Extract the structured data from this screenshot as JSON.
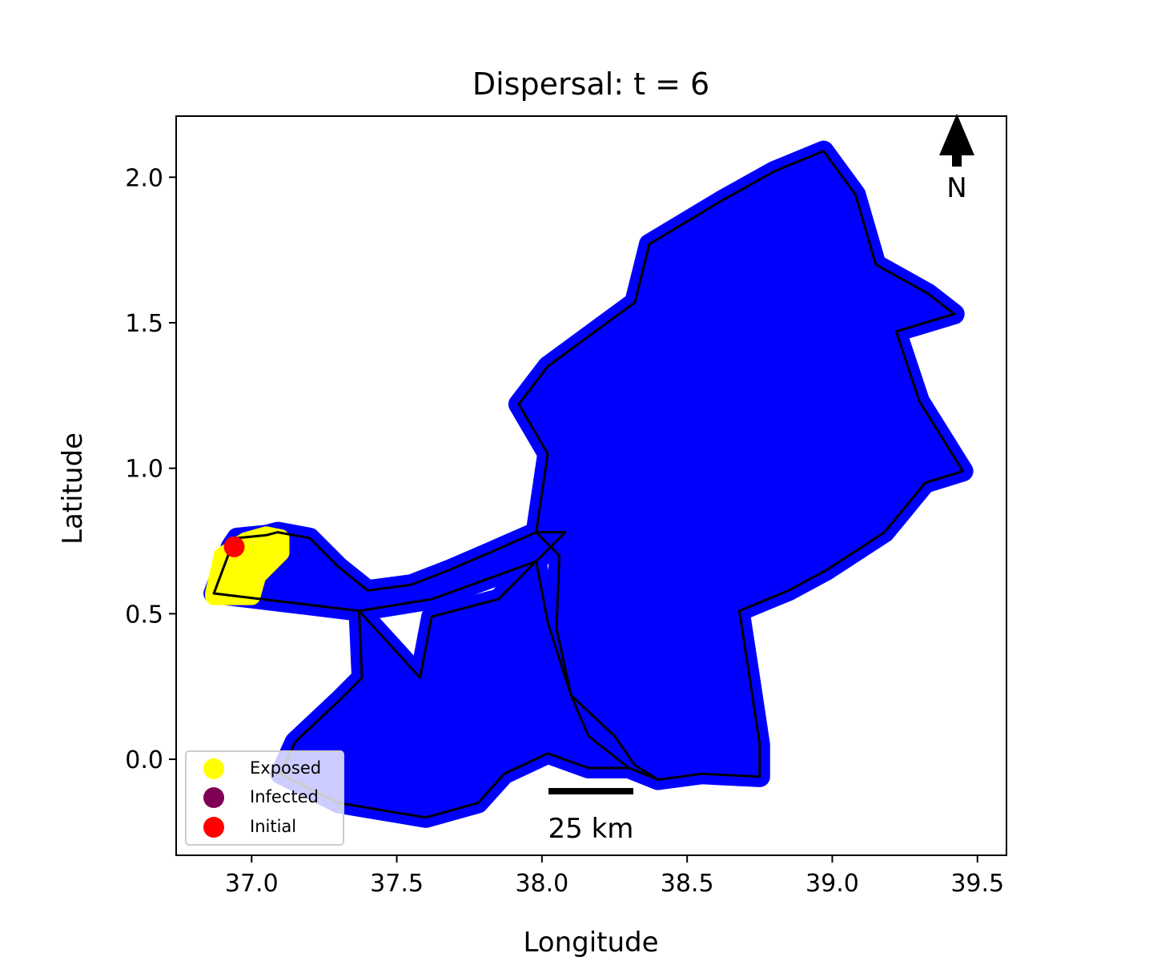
{
  "chart_data": {
    "type": "scatter",
    "title": "Dispersal: t = 6",
    "xlabel": "Longitude",
    "ylabel": "Latitude",
    "xlim": [
      36.74,
      39.6
    ],
    "ylim": [
      -0.33,
      2.21
    ],
    "xticks": [
      37.0,
      37.5,
      38.0,
      38.5,
      39.0,
      39.5
    ],
    "xtick_labels": [
      "37.0",
      "37.5",
      "38.0",
      "38.5",
      "39.0",
      "39.5"
    ],
    "yticks": [
      0.0,
      0.5,
      1.0,
      1.5,
      2.0
    ],
    "ytick_labels": [
      "0.0",
      "0.5",
      "1.0",
      "1.5",
      "2.0"
    ],
    "grid": false,
    "legend": {
      "position": "lower-left",
      "entries": [
        {
          "label": "Exposed",
          "color": "#ffff00"
        },
        {
          "label": "Infected",
          "color": "#800055"
        },
        {
          "label": "Initial",
          "color": "#ff0000"
        }
      ]
    },
    "susceptible_color": "#0000ff",
    "region_outline_color": "#000000",
    "north_arrow": {
      "label": "N",
      "lon": 39.42,
      "lat": 2.12
    },
    "scale_bar": {
      "label": "25 km",
      "lon_start": 38.02,
      "lon_end": 38.31,
      "lat": -0.11
    },
    "exposed_region": [
      [
        36.87,
        0.57
      ],
      [
        36.9,
        0.7
      ],
      [
        36.98,
        0.75
      ],
      [
        37.05,
        0.77
      ],
      [
        37.1,
        0.76
      ],
      [
        37.1,
        0.71
      ],
      [
        37.02,
        0.63
      ],
      [
        37.0,
        0.56
      ],
      [
        36.87,
        0.56
      ]
    ],
    "initial": [
      {
        "lon": 36.94,
        "lat": 0.73
      }
    ],
    "infected": [],
    "regions": [
      {
        "name": "west",
        "outline": [
          [
            36.87,
            0.57
          ],
          [
            36.93,
            0.73
          ],
          [
            36.95,
            0.76
          ],
          [
            37.05,
            0.77
          ],
          [
            37.09,
            0.78
          ],
          [
            37.2,
            0.76
          ],
          [
            37.3,
            0.66
          ],
          [
            37.4,
            0.58
          ],
          [
            37.55,
            0.6
          ],
          [
            37.68,
            0.65
          ],
          [
            37.82,
            0.71
          ],
          [
            37.98,
            0.78
          ],
          [
            38.08,
            0.78
          ],
          [
            37.98,
            0.68
          ],
          [
            37.62,
            0.55
          ],
          [
            37.37,
            0.51
          ],
          [
            36.87,
            0.57
          ]
        ]
      },
      {
        "name": "south",
        "outline": [
          [
            37.37,
            0.51
          ],
          [
            37.38,
            0.28
          ],
          [
            37.3,
            0.2
          ],
          [
            37.15,
            0.06
          ],
          [
            37.1,
            -0.05
          ],
          [
            37.3,
            -0.15
          ],
          [
            37.6,
            -0.2
          ],
          [
            37.78,
            -0.15
          ],
          [
            37.87,
            -0.05
          ],
          [
            38.02,
            0.02
          ],
          [
            38.16,
            -0.03
          ],
          [
            38.3,
            -0.03
          ],
          [
            38.4,
            -0.07
          ],
          [
            38.32,
            -0.02
          ],
          [
            38.25,
            0.08
          ],
          [
            38.1,
            0.22
          ],
          [
            38.02,
            0.47
          ],
          [
            37.98,
            0.68
          ],
          [
            37.85,
            0.55
          ],
          [
            37.62,
            0.49
          ],
          [
            37.58,
            0.28
          ],
          [
            37.37,
            0.51
          ]
        ]
      },
      {
        "name": "east",
        "outline": [
          [
            37.98,
            0.78
          ],
          [
            38.02,
            1.05
          ],
          [
            37.92,
            1.22
          ],
          [
            38.02,
            1.35
          ],
          [
            38.32,
            1.57
          ],
          [
            38.37,
            1.77
          ],
          [
            38.62,
            1.92
          ],
          [
            38.8,
            2.02
          ],
          [
            38.97,
            2.09
          ],
          [
            39.08,
            1.94
          ],
          [
            39.15,
            1.7
          ],
          [
            39.33,
            1.6
          ],
          [
            39.42,
            1.53
          ],
          [
            39.22,
            1.47
          ],
          [
            39.3,
            1.23
          ],
          [
            39.45,
            0.99
          ],
          [
            39.32,
            0.95
          ],
          [
            39.18,
            0.78
          ],
          [
            38.98,
            0.65
          ],
          [
            38.85,
            0.58
          ],
          [
            38.68,
            0.51
          ],
          [
            38.72,
            0.25
          ],
          [
            38.75,
            0.05
          ],
          [
            38.75,
            -0.06
          ],
          [
            38.55,
            -0.05
          ],
          [
            38.4,
            -0.07
          ],
          [
            38.3,
            -0.03
          ],
          [
            38.16,
            0.08
          ],
          [
            38.1,
            0.22
          ],
          [
            38.05,
            0.45
          ],
          [
            38.06,
            0.7
          ],
          [
            37.98,
            0.78
          ]
        ]
      }
    ]
  }
}
